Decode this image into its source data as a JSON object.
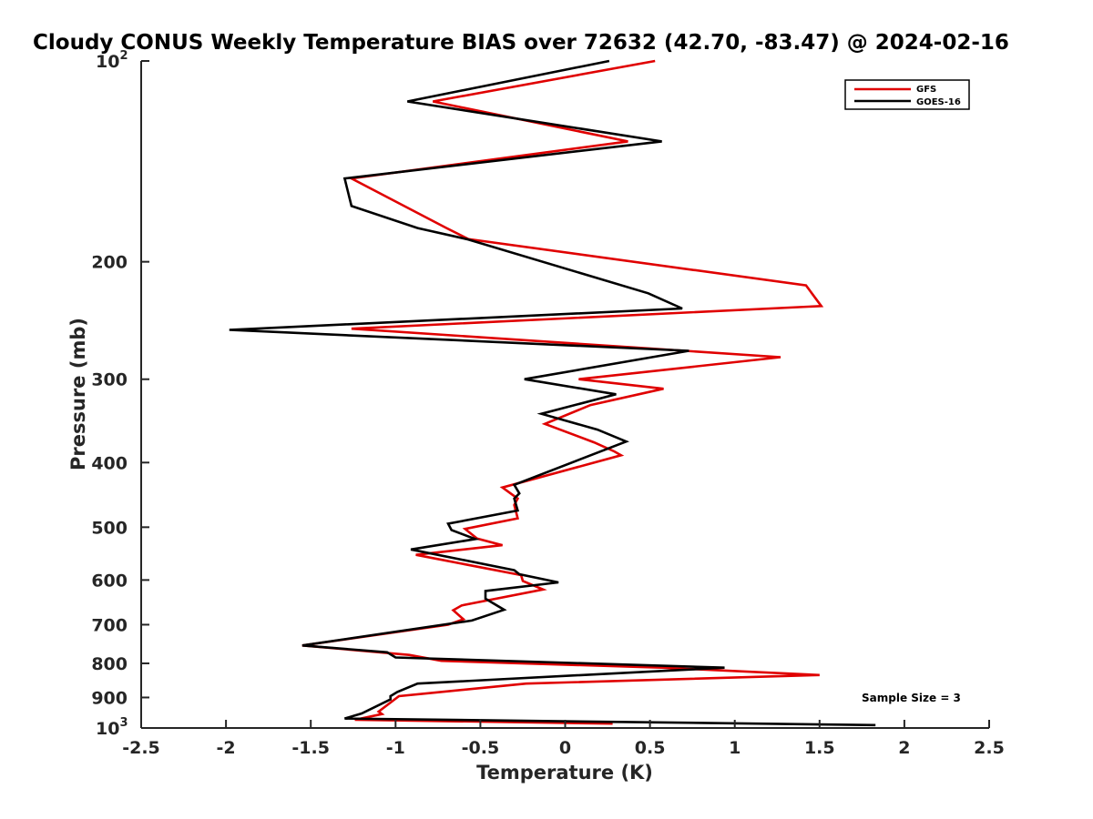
{
  "chart_data": {
    "type": "line",
    "title": "Cloudy CONUS Weekly Temperature BIAS over 72632 (42.70, -83.47) @ 2024-02-16",
    "xlabel": "Temperature (K)",
    "ylabel": "Pressure (mb)",
    "xlim": [
      -2.5,
      2.5
    ],
    "ylim": [
      100,
      1000
    ],
    "y_scale": "log",
    "y_reversed": true,
    "grid": false,
    "legend_position": "top-right",
    "sample_size_text": "Sample Size = 3",
    "x_ticks": [
      "-2.5",
      "-2",
      "-1.5",
      "-1",
      "-0.5",
      "0",
      "0.5",
      "1",
      "1.5",
      "2",
      "2.5"
    ],
    "x_tick_values": [
      -2.5,
      -2,
      -1.5,
      -1,
      -0.5,
      0,
      0.5,
      1,
      1.5,
      2,
      2.5
    ],
    "y_ticks": [
      {
        "value": 100,
        "base": "10",
        "sup": "2"
      },
      {
        "value": 200,
        "base": "200",
        "sup": ""
      },
      {
        "value": 300,
        "base": "300",
        "sup": ""
      },
      {
        "value": 400,
        "base": "400",
        "sup": ""
      },
      {
        "value": 500,
        "base": "500",
        "sup": ""
      },
      {
        "value": 600,
        "base": "600",
        "sup": ""
      },
      {
        "value": 700,
        "base": "700",
        "sup": ""
      },
      {
        "value": 800,
        "base": "800",
        "sup": ""
      },
      {
        "value": 900,
        "base": "900",
        "sup": ""
      },
      {
        "value": 1000,
        "base": "10",
        "sup": "3"
      }
    ],
    "series": [
      {
        "name": "GFS",
        "color": "#e00000",
        "points": [
          [
            0.53,
            100
          ],
          [
            -0.78,
            115
          ],
          [
            0.37,
            132
          ],
          [
            -1.26,
            150
          ],
          [
            -0.7,
            178
          ],
          [
            -0.57,
            185
          ],
          [
            1.42,
            217
          ],
          [
            1.51,
            233
          ],
          [
            -1.26,
            252
          ],
          [
            1.27,
            278
          ],
          [
            0.08,
            300
          ],
          [
            0.58,
            310
          ],
          [
            0.15,
            328
          ],
          [
            -0.12,
            350
          ],
          [
            0.17,
            373
          ],
          [
            0.29,
            385
          ],
          [
            0.33,
            390
          ],
          [
            -0.37,
            436
          ],
          [
            -0.28,
            453
          ],
          [
            -0.3,
            463
          ],
          [
            -0.28,
            485
          ],
          [
            -0.59,
            503
          ],
          [
            -0.52,
            520
          ],
          [
            -0.37,
            532
          ],
          [
            -0.88,
            550
          ],
          [
            -0.26,
            590
          ],
          [
            -0.25,
            602
          ],
          [
            -0.13,
            620
          ],
          [
            -0.61,
            655
          ],
          [
            -0.66,
            666
          ],
          [
            -0.6,
            687
          ],
          [
            -0.69,
            700
          ],
          [
            -1.55,
            752
          ],
          [
            -0.92,
            777
          ],
          [
            -0.73,
            793
          ],
          [
            0.57,
            812
          ],
          [
            1.5,
            833
          ],
          [
            -0.23,
            858
          ],
          [
            -0.98,
            896
          ],
          [
            -1.1,
            945
          ],
          [
            -1.08,
            953
          ],
          [
            -1.24,
            972
          ],
          [
            0.28,
            985
          ]
        ]
      },
      {
        "name": "GOES-16",
        "color": "#000000",
        "points": [
          [
            0.26,
            100
          ],
          [
            -0.93,
            115
          ],
          [
            0.57,
            132
          ],
          [
            -1.3,
            150
          ],
          [
            -1.26,
            165
          ],
          [
            -0.87,
            178
          ],
          [
            -0.58,
            185
          ],
          [
            0.49,
            223
          ],
          [
            0.69,
            235
          ],
          [
            -1.98,
            253
          ],
          [
            0.73,
            272
          ],
          [
            -0.24,
            300
          ],
          [
            0.3,
            316
          ],
          [
            -0.14,
            338
          ],
          [
            0.19,
            357
          ],
          [
            0.36,
            372
          ],
          [
            -0.3,
            432
          ],
          [
            -0.27,
            445
          ],
          [
            -0.3,
            453
          ],
          [
            -0.28,
            472
          ],
          [
            -0.69,
            494
          ],
          [
            -0.67,
            505
          ],
          [
            -0.53,
            521
          ],
          [
            -0.91,
            540
          ],
          [
            -0.3,
            580
          ],
          [
            -0.27,
            588
          ],
          [
            -0.04,
            605
          ],
          [
            -0.47,
            623
          ],
          [
            -0.47,
            640
          ],
          [
            -0.36,
            665
          ],
          [
            -0.55,
            690
          ],
          [
            -1.55,
            752
          ],
          [
            -1.05,
            770
          ],
          [
            -1.0,
            784
          ],
          [
            0.94,
            812
          ],
          [
            -0.87,
            858
          ],
          [
            -0.99,
            883
          ],
          [
            -1.03,
            896
          ],
          [
            -1.03,
            906
          ],
          [
            -1.2,
            951
          ],
          [
            -1.3,
            968
          ],
          [
            1.83,
            990
          ]
        ]
      }
    ]
  }
}
